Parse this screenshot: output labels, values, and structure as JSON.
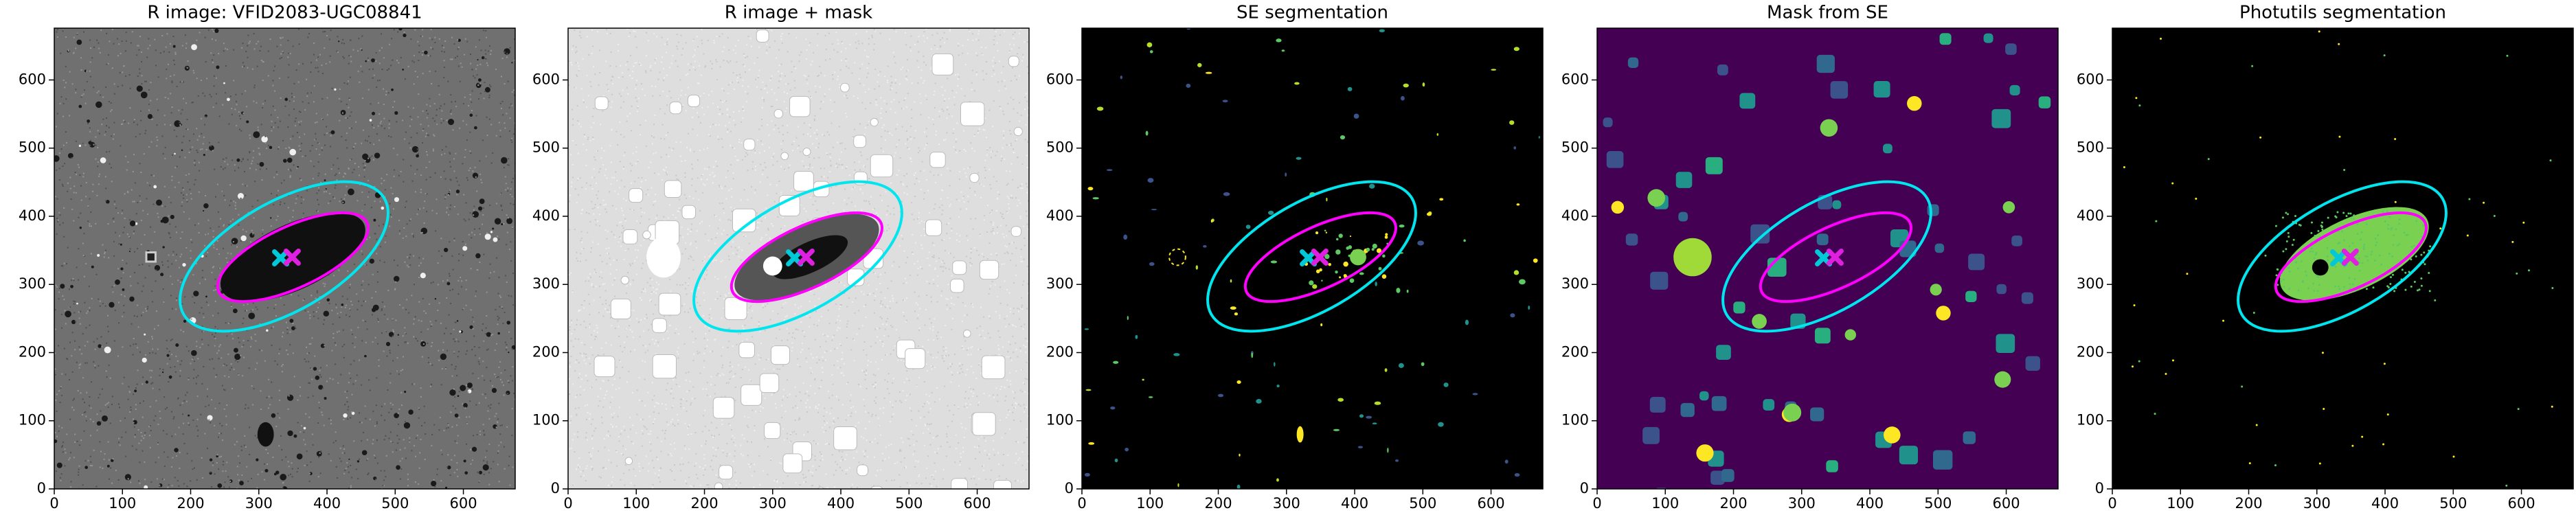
{
  "chart_data": [
    {
      "type": "image",
      "title": "R image: VFID2083-UGC08841",
      "xlim": [
        0,
        676
      ],
      "ylim": [
        0,
        676
      ],
      "xticks": [
        0,
        100,
        200,
        300,
        400,
        500,
        600
      ],
      "yticks": [
        0,
        100,
        200,
        300,
        400,
        500,
        600
      ],
      "ellipses": [
        {
          "color": "#00e5ee",
          "x": 337,
          "y": 341,
          "a": 170,
          "b": 80,
          "angle": 30
        },
        {
          "color": "#ff00ff",
          "x": 350,
          "y": 340,
          "a": 120,
          "b": 45,
          "angle": 25
        }
      ],
      "markers": [
        {
          "color": "#00c8d8",
          "x": 332,
          "y": 339
        },
        {
          "color": "#e020e0",
          "x": 349,
          "y": 340
        }
      ]
    },
    {
      "type": "image",
      "title": "R image + mask",
      "xlim": [
        0,
        676
      ],
      "ylim": [
        0,
        676
      ],
      "xticks": [
        0,
        100,
        200,
        300,
        400,
        500,
        600
      ],
      "yticks": [
        0,
        100,
        200,
        300,
        400,
        500,
        600
      ],
      "ellipses": [
        {
          "color": "#00e5ee",
          "x": 337,
          "y": 341,
          "a": 170,
          "b": 80,
          "angle": 30
        },
        {
          "color": "#ff00ff",
          "x": 350,
          "y": 340,
          "a": 120,
          "b": 45,
          "angle": 25
        }
      ],
      "markers": [
        {
          "color": "#00c8d8",
          "x": 332,
          "y": 339
        },
        {
          "color": "#e020e0",
          "x": 349,
          "y": 340
        }
      ]
    },
    {
      "type": "image",
      "title": "SE segmentation",
      "xlim": [
        0,
        676
      ],
      "ylim": [
        0,
        676
      ],
      "xticks": [
        0,
        100,
        200,
        300,
        400,
        500,
        600
      ],
      "yticks": [
        0,
        100,
        200,
        300,
        400,
        500,
        600
      ],
      "ellipses": [
        {
          "color": "#00e5ee",
          "x": 337,
          "y": 341,
          "a": 170,
          "b": 80,
          "angle": 30
        },
        {
          "color": "#ff00ff",
          "x": 350,
          "y": 340,
          "a": 120,
          "b": 45,
          "angle": 25
        }
      ],
      "markers": [
        {
          "color": "#00c8d8",
          "x": 332,
          "y": 339
        },
        {
          "color": "#e020e0",
          "x": 349,
          "y": 340
        }
      ]
    },
    {
      "type": "image",
      "title": "Mask from SE",
      "xlim": [
        0,
        676
      ],
      "ylim": [
        0,
        676
      ],
      "xticks": [
        0,
        100,
        200,
        300,
        400,
        500,
        600
      ],
      "yticks": [
        0,
        100,
        200,
        300,
        400,
        500,
        600
      ],
      "ellipses": [
        {
          "color": "#00e5ee",
          "x": 337,
          "y": 341,
          "a": 170,
          "b": 80,
          "angle": 30
        },
        {
          "color": "#ff00ff",
          "x": 350,
          "y": 340,
          "a": 120,
          "b": 45,
          "angle": 25
        }
      ],
      "markers": [
        {
          "color": "#00c8d8",
          "x": 332,
          "y": 339
        },
        {
          "color": "#e020e0",
          "x": 349,
          "y": 340
        }
      ]
    },
    {
      "type": "image",
      "title": "Photutils segmentation",
      "xlim": [
        0,
        676
      ],
      "ylim": [
        0,
        676
      ],
      "xticks": [
        0,
        100,
        200,
        300,
        400,
        500,
        600
      ],
      "yticks": [
        0,
        100,
        200,
        300,
        400,
        500,
        600
      ],
      "ellipses": [
        {
          "color": "#00e5ee",
          "x": 337,
          "y": 341,
          "a": 170,
          "b": 80,
          "angle": 30
        },
        {
          "color": "#ff00ff",
          "x": 350,
          "y": 340,
          "a": 120,
          "b": 45,
          "angle": 25
        }
      ],
      "markers": [
        {
          "color": "#00c8d8",
          "x": 332,
          "y": 339
        },
        {
          "color": "#e020e0",
          "x": 349,
          "y": 340
        }
      ]
    }
  ]
}
